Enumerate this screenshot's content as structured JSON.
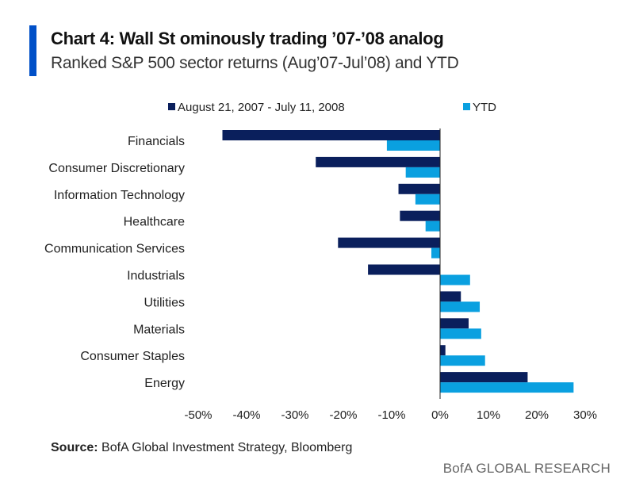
{
  "header": {
    "title": "Chart 4: Wall St ominously trading ’07-’08 analog",
    "subtitle": "Ranked S&P 500 sector returns (Aug’07-Jul’08) and YTD"
  },
  "footer": {
    "source_label": "Source:",
    "source_text": " BofA Global Investment Strategy, Bloomberg",
    "brand": "BofA GLOBAL RESEARCH"
  },
  "colors": {
    "accent": "#0050c8",
    "series_1": "#0a1f5c",
    "series_2": "#0aa0e0"
  },
  "chart_data": {
    "type": "bar",
    "orientation": "horizontal",
    "title": "Chart 4: Wall St ominously trading ’07-’08 analog",
    "subtitle": "Ranked S&P 500 sector returns (Aug’07-Jul’08) and YTD",
    "xlabel": "",
    "ylabel": "",
    "xlim": [
      -50,
      30
    ],
    "x_ticks": [
      -50,
      -40,
      -30,
      -20,
      -10,
      0,
      10,
      20,
      30
    ],
    "x_tick_labels": [
      "-50%",
      "-40%",
      "-30%",
      "-20%",
      "-10%",
      "0%",
      "10%",
      "20%",
      "30%"
    ],
    "grid": false,
    "legend_position": "top",
    "categories": [
      "Financials",
      "Consumer Discretionary",
      "Information Technology",
      "Healthcare",
      "Communication Services",
      "Industrials",
      "Utilities",
      "Materials",
      "Consumer Staples",
      "Energy"
    ],
    "series": [
      {
        "name": "August 21, 2007 - July 11, 2008",
        "color": "#0a1f5c",
        "values": [
          -45,
          -25.7,
          -8.6,
          -8.3,
          -21.1,
          -14.9,
          4.3,
          5.9,
          1.1,
          18.1
        ]
      },
      {
        "name": "YTD",
        "color": "#0aa0e0",
        "values": [
          -11,
          -7.1,
          -5.1,
          -3,
          -1.8,
          6.2,
          8.2,
          8.5,
          9.3,
          27.6
        ]
      }
    ]
  }
}
